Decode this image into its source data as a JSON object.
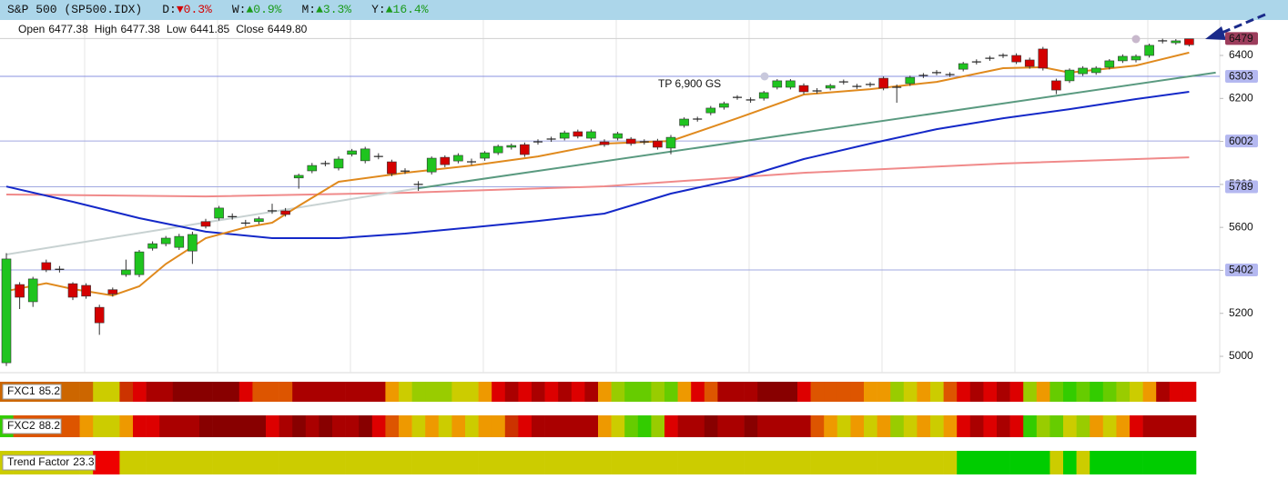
{
  "chart_data": {
    "type": "candlestick",
    "title": "S&P 500 (SP500.IDX)",
    "changes": [
      {
        "label": "D:",
        "value": "▼0.3%",
        "color": "#d40000"
      },
      {
        "label": "W:",
        "value": "▲0.9%",
        "color": "#1a9a1a"
      },
      {
        "label": "M:",
        "value": "▲3.3%",
        "color": "#1a9a1a"
      },
      {
        "label": "Y:",
        "value": "▲16.4%",
        "color": "#1a9a1a"
      }
    ],
    "info": [
      {
        "label": "Open",
        "value": "6477.38"
      },
      {
        "label": "High",
        "value": "6477.38"
      },
      {
        "label": "Low",
        "value": "6441.85"
      },
      {
        "label": "Close",
        "value": "6449.80"
      }
    ],
    "annotation": "TP 6,900 GS",
    "ylim": [
      4924,
      6565
    ],
    "yticks": [
      5000,
      5200,
      5400,
      5600,
      5800,
      6000,
      6200,
      6400
    ],
    "grid": true,
    "up_color": "#1fc41f",
    "down_color": "#d40000",
    "open": [
      4970,
      5334,
      5254,
      5436,
      5405,
      5338,
      5330,
      5228,
      5310,
      5380,
      5380,
      5503,
      5524,
      5507,
      5490,
      5627,
      5643,
      5650,
      5620,
      5627,
      5677,
      5677,
      5830,
      5863,
      5897,
      5876,
      5940,
      5910,
      5930,
      5905,
      5862,
      5800,
      5858,
      5926,
      5909,
      5905,
      5922,
      5947,
      5973,
      5985,
      5998,
      6011,
      6015,
      6045,
      6015,
      5998,
      6015,
      6011,
      5998,
      6002,
      5969,
      6074,
      6104,
      6133,
      6159,
      6205,
      6193,
      6201,
      6252,
      6252,
      6260,
      6235,
      6248,
      6277,
      6256,
      6265,
      6294,
      6252,
      6269,
      6307,
      6320,
      6311,
      6336,
      6370,
      6387,
      6400,
      6400,
      6379,
      6430,
      6282,
      6282,
      6315,
      6320,
      6345,
      6375,
      6379,
      6400,
      6468,
      6459,
      6477.38
    ],
    "high": [
      5480,
      5345,
      5370,
      5450,
      5420,
      5345,
      5340,
      5240,
      5320,
      5450,
      5495,
      5535,
      5560,
      5570,
      5580,
      5640,
      5700,
      5665,
      5635,
      5650,
      5710,
      5690,
      5850,
      5900,
      5910,
      5930,
      5965,
      5975,
      5945,
      5915,
      5875,
      5815,
      5930,
      5935,
      5945,
      5920,
      5955,
      5985,
      5990,
      5995,
      6010,
      6022,
      6050,
      6055,
      6055,
      6010,
      6045,
      6020,
      6010,
      6012,
      6030,
      6112,
      6115,
      6165,
      6185,
      6215,
      6205,
      6235,
      6290,
      6290,
      6270,
      6248,
      6268,
      6288,
      6268,
      6276,
      6302,
      6265,
      6306,
      6318,
      6332,
      6322,
      6370,
      6382,
      6398,
      6410,
      6410,
      6390,
      6440,
      6292,
      6340,
      6350,
      6350,
      6383,
      6405,
      6405,
      6455,
      6478,
      6476,
      6477.38
    ],
    "low": [
      4955,
      5220,
      5230,
      5392,
      5390,
      5262,
      5268,
      5100,
      5278,
      5370,
      5368,
      5492,
      5512,
      5495,
      5430,
      5595,
      5632,
      5636,
      5606,
      5615,
      5663,
      5650,
      5780,
      5852,
      5884,
      5865,
      5930,
      5898,
      5917,
      5838,
      5848,
      5770,
      5846,
      5880,
      5898,
      5890,
      5910,
      5937,
      5962,
      5928,
      5985,
      5998,
      6005,
      6014,
      6005,
      5975,
      6005,
      5980,
      5985,
      5962,
      5940,
      6064,
      6092,
      6122,
      6148,
      6194,
      6180,
      6190,
      6242,
      6242,
      6220,
      6222,
      6238,
      6265,
      6244,
      6253,
      6238,
      6180,
      6258,
      6295,
      6308,
      6300,
      6326,
      6358,
      6375,
      6388,
      6360,
      6338,
      6330,
      6220,
      6272,
      6305,
      6310,
      6335,
      6365,
      6368,
      6390,
      6456,
      6450,
      6441.85
    ],
    "close": [
      5453,
      5275,
      5360,
      5402,
      5405,
      5275,
      5280,
      5156,
      5290,
      5402,
      5486,
      5524,
      5550,
      5558,
      5567,
      5605,
      5690,
      5650,
      5620,
      5640,
      5677,
      5660,
      5842,
      5888,
      5897,
      5918,
      5956,
      5965,
      5930,
      5850,
      5862,
      5800,
      5922,
      5892,
      5935,
      5905,
      5947,
      5977,
      5981,
      5939,
      5998,
      6011,
      6040,
      6024,
      6045,
      5985,
      6036,
      5990,
      5998,
      5973,
      6019,
      6104,
      6104,
      6155,
      6176,
      6205,
      6193,
      6227,
      6282,
      6282,
      6231,
      6235,
      6260,
      6277,
      6256,
      6265,
      6248,
      6252,
      6298,
      6307,
      6320,
      6311,
      6362,
      6370,
      6387,
      6400,
      6370,
      6349,
      6341,
      6239,
      6332,
      6341,
      6341,
      6375,
      6396,
      6396,
      6447,
      6468,
      6468,
      6449.8
    ],
    "lines": [
      {
        "color": "#f08a8a",
        "x": [
          0,
          15,
          30,
          45,
          60,
          75,
          89
        ],
        "values": [
          5753,
          5744,
          5761,
          5791,
          5854,
          5897,
          5926
        ]
      },
      {
        "color": "#c8d2d2",
        "x": [
          0,
          31
        ],
        "values": [
          5474,
          5782
        ]
      },
      {
        "color": "#5a9a80",
        "x": [
          31,
          91
        ],
        "values": [
          5782,
          6320
        ]
      },
      {
        "color": "#1428c8",
        "x": [
          0,
          5,
          10,
          15,
          20,
          25,
          30,
          35,
          40,
          45,
          50,
          55,
          60,
          65,
          70,
          75,
          80,
          85,
          89
        ],
        "values": [
          5790,
          5719,
          5643,
          5580,
          5550,
          5550,
          5571,
          5600,
          5630,
          5664,
          5757,
          5825,
          5918,
          5990,
          6057,
          6108,
          6150,
          6197,
          6231
        ]
      },
      {
        "color": "#e08a1e",
        "x": [
          0,
          3,
          5,
          8,
          10,
          12,
          15,
          18,
          20,
          22,
          25,
          30,
          35,
          40,
          45,
          50,
          55,
          60,
          65,
          70,
          75,
          78,
          80,
          85,
          89
        ],
        "values": [
          5304,
          5340,
          5313,
          5283,
          5326,
          5430,
          5550,
          5600,
          5622,
          5700,
          5812,
          5854,
          5888,
          5930,
          5990,
          6002,
          6108,
          6218,
          6243,
          6277,
          6341,
          6345,
          6320,
          6353,
          6413
        ]
      }
    ],
    "levels": [
      {
        "value": 6479,
        "color": "#9c3d5c",
        "label_color": "#ffffff",
        "line_color": "#cfcfcf"
      },
      {
        "value": 6303,
        "color": "#b4b8f0",
        "label_color": "#222222",
        "line_color": "#8890e0"
      },
      {
        "value": 6002,
        "color": "#b4b8f0",
        "label_color": "#222222",
        "line_color": "#a0a8e0"
      },
      {
        "value": 5789,
        "color": "#b4b8f0",
        "label_color": "#222222",
        "line_color": "#a0a8e0"
      },
      {
        "value": 5402,
        "color": "#b4b8f0",
        "label_color": "#222222",
        "line_color": "#a0a8e0"
      }
    ],
    "strips": [
      {
        "name": "FXC1",
        "value": 85.2,
        "colors": [
          "#c60",
          "#c60",
          "#c60",
          "#c60",
          "#c60",
          "#c60",
          "#c60",
          "#cc0",
          "#cc0",
          "#c30",
          "#d00",
          "#a00",
          "#a00",
          "#800",
          "#800",
          "#800",
          "#800",
          "#800",
          "#d00",
          "#d50",
          "#d50",
          "#d50",
          "#a00",
          "#a00",
          "#a00",
          "#a00",
          "#a00",
          "#a00",
          "#a00",
          "#e90",
          "#cc0",
          "#9c0",
          "#9c0",
          "#9c0",
          "#cc0",
          "#cc0",
          "#e90",
          "#d00",
          "#a00",
          "#d00",
          "#a00",
          "#d00",
          "#a00",
          "#d00",
          "#a00",
          "#e90",
          "#9c0",
          "#6c0",
          "#6c0",
          "#9c0",
          "#6c0",
          "#e90",
          "#d00",
          "#d50",
          "#a00",
          "#a00",
          "#a00",
          "#800",
          "#800",
          "#800",
          "#d00",
          "#d50",
          "#d50",
          "#d50",
          "#d50",
          "#e90",
          "#e90",
          "#9c0",
          "#cc0",
          "#e90",
          "#cc0",
          "#d50",
          "#d00",
          "#a00",
          "#d00",
          "#a00",
          "#d00",
          "#9c0",
          "#e90",
          "#6c0",
          "#3c0",
          "#6c0",
          "#3c0",
          "#6c0",
          "#9c0",
          "#cc0",
          "#e90",
          "#a00",
          "#d00",
          "#d00"
        ]
      },
      {
        "name": "FXC2",
        "value": 88.2,
        "colors": [
          "#3c0",
          "#d50",
          "#d50",
          "#d50",
          "#d50",
          "#d50",
          "#e90",
          "#cc0",
          "#cc0",
          "#e90",
          "#d00",
          "#d00",
          "#a00",
          "#a00",
          "#a00",
          "#800",
          "#800",
          "#800",
          "#800",
          "#800",
          "#d00",
          "#a00",
          "#800",
          "#a00",
          "#800",
          "#a00",
          "#a00",
          "#800",
          "#d00",
          "#d50",
          "#e90",
          "#cc0",
          "#e90",
          "#cc0",
          "#e90",
          "#cc0",
          "#e90",
          "#e90",
          "#c30",
          "#d00",
          "#a00",
          "#a00",
          "#a00",
          "#a00",
          "#a00",
          "#e90",
          "#cc0",
          "#6c0",
          "#3c0",
          "#9c0",
          "#d00",
          "#a00",
          "#a00",
          "#800",
          "#a00",
          "#a00",
          "#800",
          "#a00",
          "#a00",
          "#a00",
          "#a00",
          "#d50",
          "#e90",
          "#cc0",
          "#e90",
          "#cc0",
          "#e90",
          "#9c0",
          "#cc0",
          "#e90",
          "#cc0",
          "#e90",
          "#d00",
          "#a00",
          "#d00",
          "#a00",
          "#d00",
          "#3c0",
          "#9c0",
          "#6c0",
          "#cc0",
          "#9c0",
          "#e90",
          "#cc0",
          "#e90",
          "#d00",
          "#a00",
          "#a00",
          "#a00",
          "#a00"
        ]
      },
      {
        "name": "Trend Factor",
        "value": 23.3,
        "colors": [
          "#cc0",
          "#cc0",
          "#cc0",
          "#cc0",
          "#cc0",
          "#cc0",
          "#cc0",
          "#e00",
          "#e00",
          "#cc0",
          "#cc0",
          "#cc0",
          "#cc0",
          "#cc0",
          "#cc0",
          "#cc0",
          "#cc0",
          "#cc0",
          "#cc0",
          "#cc0",
          "#cc0",
          "#cc0",
          "#cc0",
          "#cc0",
          "#cc0",
          "#cc0",
          "#cc0",
          "#cc0",
          "#cc0",
          "#cc0",
          "#cc0",
          "#cc0",
          "#cc0",
          "#cc0",
          "#cc0",
          "#cc0",
          "#cc0",
          "#cc0",
          "#cc0",
          "#cc0",
          "#cc0",
          "#cc0",
          "#cc0",
          "#cc0",
          "#cc0",
          "#cc0",
          "#cc0",
          "#cc0",
          "#cc0",
          "#cc0",
          "#cc0",
          "#cc0",
          "#cc0",
          "#cc0",
          "#cc0",
          "#cc0",
          "#cc0",
          "#cc0",
          "#cc0",
          "#cc0",
          "#cc0",
          "#cc0",
          "#cc0",
          "#cc0",
          "#cc0",
          "#cc0",
          "#cc0",
          "#cc0",
          "#cc0",
          "#cc0",
          "#cc0",
          "#cc0",
          "#0c0",
          "#0c0",
          "#0c0",
          "#0c0",
          "#0c0",
          "#0c0",
          "#0c0",
          "#cc0",
          "#0c0",
          "#cc0",
          "#0c0",
          "#0c0",
          "#0c0",
          "#0c0",
          "#0c0",
          "#0c0",
          "#0c0",
          "#0c0"
        ]
      }
    ]
  }
}
